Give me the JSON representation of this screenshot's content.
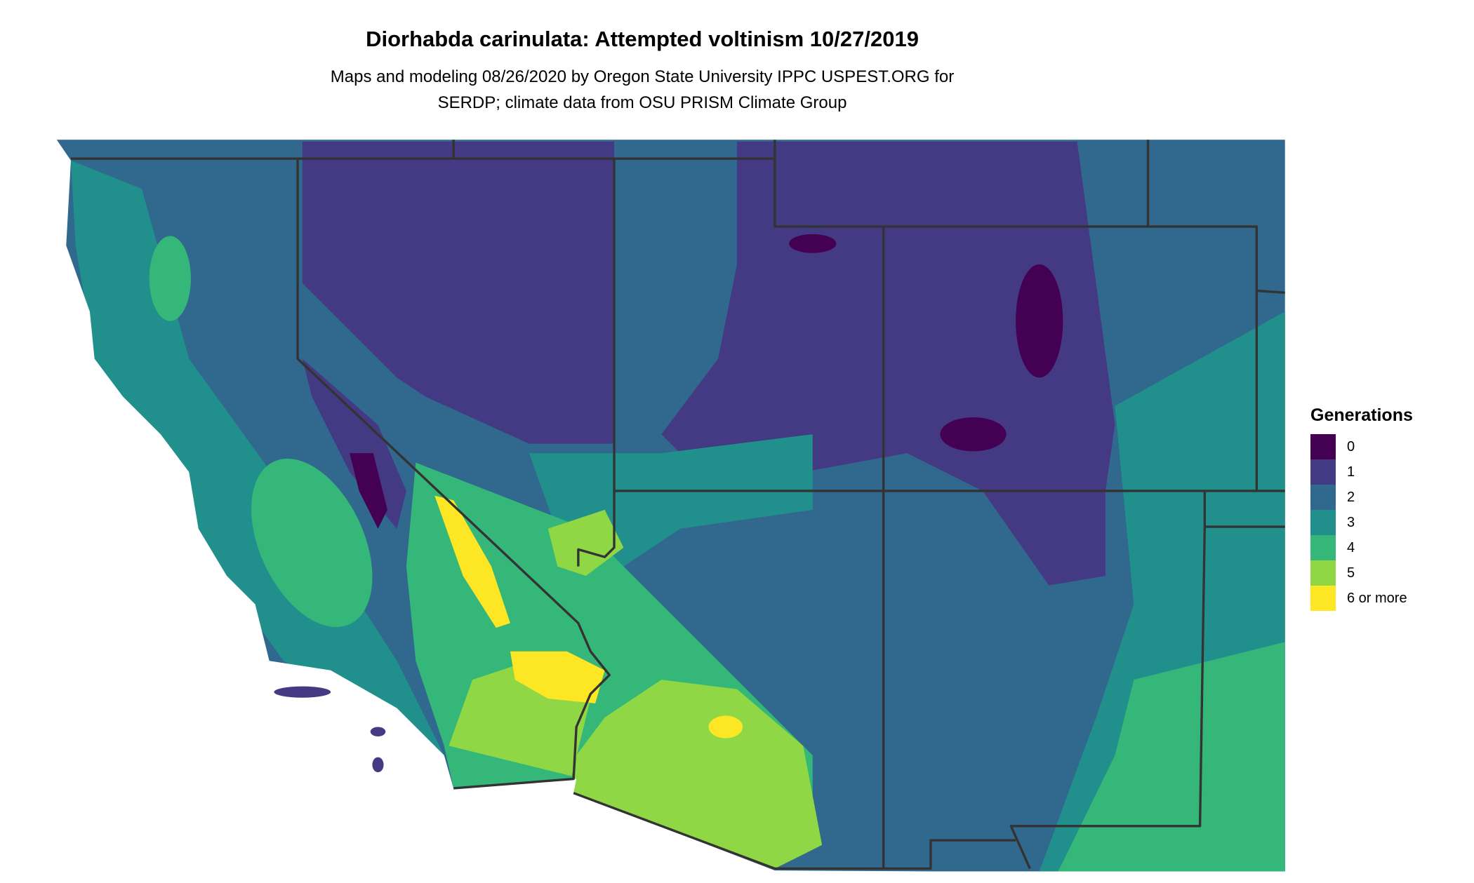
{
  "title": "Diorhabda carinulata: Attempted voltinism 10/27/2019",
  "subtitle_lines": [
    "Maps and modeling 08/26/2020 by Oregon State University IPPC USPEST.ORG for",
    "SERDP; climate data from OSU PRISM Climate Group"
  ],
  "legend": {
    "title": "Generations",
    "items": [
      {
        "label": "0",
        "color": "#440154"
      },
      {
        "label": "1",
        "color": "#443a83"
      },
      {
        "label": "2",
        "color": "#31688e"
      },
      {
        "label": "3",
        "color": "#21908d"
      },
      {
        "label": "4",
        "color": "#35b779"
      },
      {
        "label": "5",
        "color": "#8fd744"
      },
      {
        "label": "6 or more",
        "color": "#fde725"
      }
    ]
  },
  "map": {
    "border_color": "#333333",
    "ocean_color": "#ffffff"
  }
}
